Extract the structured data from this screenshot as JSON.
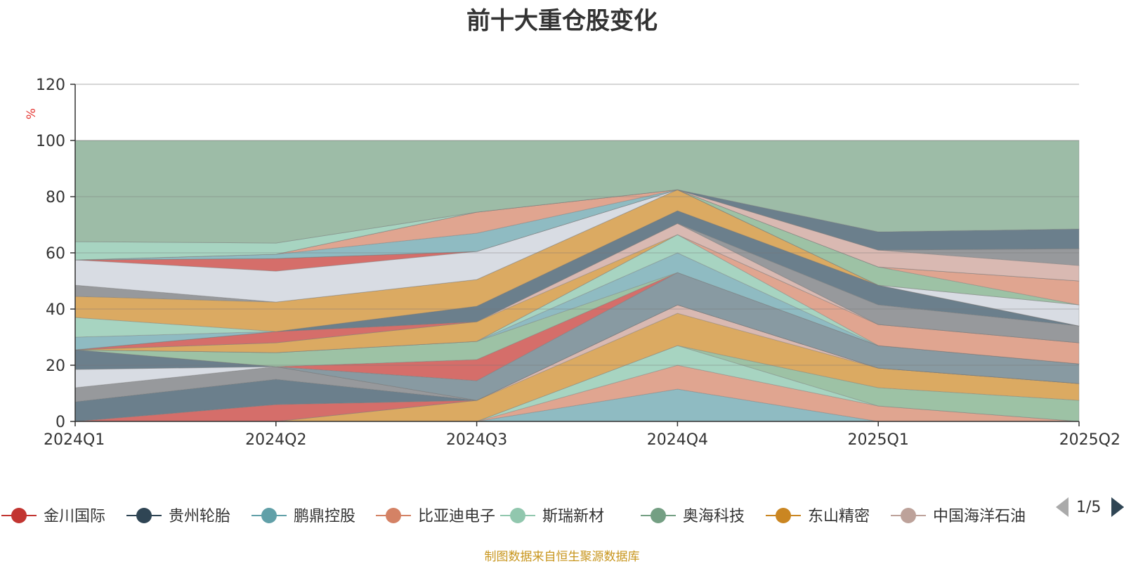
{
  "title": "前十大重仓股变化",
  "footer": "制图数据来自恒生聚源数据库",
  "legend_pager": "1/5",
  "chart_data": {
    "type": "area",
    "categories": [
      "2024Q1",
      "2024Q2",
      "2024Q3",
      "2024Q4",
      "2025Q1",
      "2025Q2"
    ],
    "ylabel": "%",
    "ylim": [
      0,
      120
    ],
    "yticks": [
      0,
      20,
      40,
      60,
      80,
      100,
      120
    ],
    "grid": true,
    "legend_placement": "bottom",
    "layers": [
      {
        "color": "#8fbbc2",
        "top": [
          0,
          0,
          0,
          11.5,
          0,
          0
        ]
      },
      {
        "color": "#e0a590",
        "top": [
          0,
          0,
          0,
          20,
          5.5,
          0
        ]
      },
      {
        "color": "#a7d4c1",
        "top": [
          0,
          0,
          0,
          27,
          5.5,
          0
        ]
      },
      {
        "color": "#9dc2a5",
        "top": [
          0,
          0,
          0,
          27,
          12,
          7.5
        ]
      },
      {
        "color": "#dbaa62",
        "top": [
          0,
          0,
          7.5,
          38.5,
          19,
          13.5
        ]
      },
      {
        "color": "#d9b9b2",
        "top": [
          0,
          0,
          7.5,
          41.5,
          19,
          13.5
        ]
      },
      {
        "color": "#d56e6a",
        "top": [
          0,
          6,
          7.5,
          41.5,
          19,
          13.5
        ]
      },
      {
        "color": "#6b7f8c",
        "top": [
          7,
          15,
          7.5,
          41.5,
          19,
          13.5
        ]
      },
      {
        "color": "#97999c",
        "top": [
          12,
          19.5,
          7.5,
          41.5,
          19,
          13.5
        ]
      },
      {
        "color": "#d8dce3",
        "top": [
          18.5,
          19.5,
          7.5,
          41.5,
          19,
          13.5
        ]
      },
      {
        "color": "#6b7f8c",
        "top": [
          25.5,
          19.5,
          7.5,
          41.5,
          19,
          13.5
        ]
      },
      {
        "color": "#889aa2",
        "top": [
          25.5,
          19.5,
          14.5,
          53,
          27,
          20.5
        ]
      },
      {
        "color": "#d56e6a",
        "top": [
          25.5,
          19.5,
          22,
          53,
          27,
          20.5
        ]
      },
      {
        "color": "#9dc2a5",
        "top": [
          25.5,
          24.5,
          28.5,
          53,
          27,
          20.5
        ]
      },
      {
        "color": "#8fbbc2",
        "top": [
          25.5,
          24.5,
          28.5,
          60,
          27,
          20.5
        ]
      },
      {
        "color": "#a7d4c1",
        "top": [
          25.5,
          24.5,
          28.5,
          66.5,
          27,
          20.5
        ]
      },
      {
        "color": "#e0a590",
        "top": [
          25.5,
          24.5,
          28.5,
          66.5,
          34.5,
          28
        ]
      },
      {
        "color": "#dbaa62",
        "top": [
          25.5,
          28,
          35.5,
          66.5,
          34.5,
          28
        ]
      },
      {
        "color": "#d9b9b2",
        "top": [
          25.5,
          28,
          35.5,
          70.5,
          34.5,
          28
        ]
      },
      {
        "color": "#d56e6a",
        "top": [
          25.5,
          32,
          35.5,
          70.5,
          34.5,
          28
        ]
      },
      {
        "color": "#97999c",
        "top": [
          25.5,
          32,
          35.5,
          70.5,
          41.5,
          34
        ]
      },
      {
        "color": "#6b7f8c",
        "top": [
          25.5,
          32,
          41,
          75,
          48.5,
          34
        ]
      },
      {
        "color": "#8fbbc2",
        "top": [
          30,
          32,
          41,
          75,
          48.5,
          34
        ]
      },
      {
        "color": "#a7d4c1",
        "top": [
          37,
          32,
          41,
          75,
          48.5,
          34
        ]
      },
      {
        "color": "#dbaa62",
        "top": [
          44.5,
          42.5,
          50.5,
          82.5,
          48.5,
          34
        ]
      },
      {
        "color": "#97999c",
        "top": [
          48.5,
          42.5,
          50.5,
          82.5,
          48.5,
          34
        ]
      },
      {
        "color": "#d8dce3",
        "top": [
          57.5,
          53.5,
          60.5,
          82.5,
          48.5,
          41.5
        ]
      },
      {
        "color": "#d56e6a",
        "top": [
          57.5,
          58,
          60.5,
          82.5,
          48.5,
          41.5
        ]
      },
      {
        "color": "#9dc2a5",
        "top": [
          57.5,
          58,
          60.5,
          82.5,
          55,
          41.5
        ]
      },
      {
        "color": "#e0a590",
        "top": [
          57.5,
          58,
          60.5,
          82.5,
          55,
          50
        ]
      },
      {
        "color": "#8fbbc2",
        "top": [
          57.5,
          59.5,
          67,
          82.5,
          55,
          50
        ]
      },
      {
        "color": "#e0a590",
        "top": [
          57.5,
          59.5,
          74.5,
          82.5,
          55,
          50
        ]
      },
      {
        "color": "#d9b9b2",
        "top": [
          57.5,
          59.5,
          74.5,
          82.5,
          61,
          55.5
        ]
      },
      {
        "color": "#97999c",
        "top": [
          57.5,
          59.5,
          74.5,
          82.5,
          61,
          61.5
        ]
      },
      {
        "color": "#a7d4c1",
        "top": [
          64,
          63.5,
          74.5,
          82.5,
          61,
          61.5
        ]
      },
      {
        "color": "#6b7f8c",
        "top": [
          64,
          63.5,
          74.5,
          82.5,
          67.5,
          68.5
        ]
      },
      {
        "color": "#9dbca7",
        "top": [
          100,
          100,
          100,
          100,
          100,
          100
        ]
      }
    ],
    "legend": [
      {
        "name": "金川国际",
        "color": "#c23531"
      },
      {
        "name": "贵州轮胎",
        "color": "#2f4554"
      },
      {
        "name": "鹏鼎控股",
        "color": "#61a0a8"
      },
      {
        "name": "比亚迪电子",
        "color": "#d48265"
      },
      {
        "name": "斯瑞新材",
        "color": "#91c7ae"
      },
      {
        "name": "奥海科技",
        "color": "#749f83"
      },
      {
        "name": "东山精密",
        "color": "#ca8622"
      },
      {
        "name": "中国海洋石油",
        "color": "#bda29a"
      }
    ]
  }
}
